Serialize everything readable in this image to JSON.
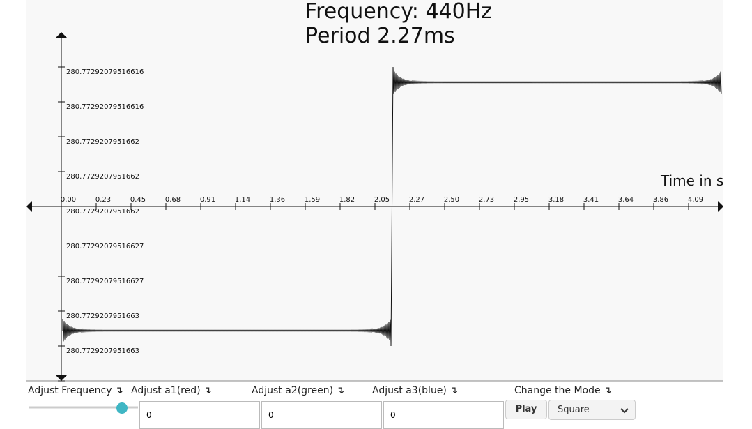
{
  "header": {
    "frequency_title": "Frequency: 440Hz",
    "period_title": "Period 2.27ms"
  },
  "plot": {
    "x_axis_label": "Time in s",
    "x_tick_labels": [
      "0.00",
      "0.23",
      "0.45",
      "0.68",
      "0.91",
      "1.14",
      "1.36",
      "1.59",
      "1.82",
      "2.05",
      "2.27",
      "2.50",
      "2.73",
      "2.95",
      "3.18",
      "3.41",
      "3.64",
      "3.86",
      "4.09"
    ],
    "y_tick_labels": [
      "280.77292079516616",
      "280.77292079516616",
      "280.7729207951662",
      "280.7729207951662",
      "280.7729207951662",
      "280.77292079516627",
      "280.77292079516627",
      "280.7729207951663",
      "280.7729207951663"
    ]
  },
  "controls": {
    "frequency_label": "Adjust Frequency ↴",
    "a1_label": "Adjust a1(red) ↴",
    "a2_label": "Adjust a2(green) ↴",
    "a3_label": "Adjust a3(blue) ↴",
    "mode_label": "Change the Mode ↴",
    "a1_value": "0",
    "a2_value": "0",
    "a3_value": "0",
    "play_button": "Play",
    "mode_value": "Square"
  }
}
